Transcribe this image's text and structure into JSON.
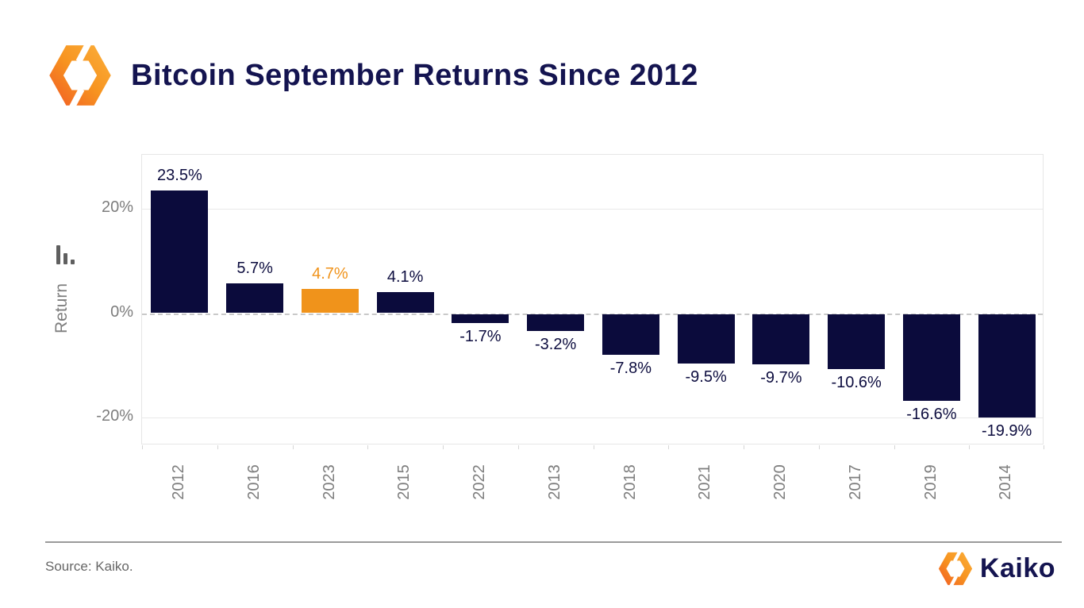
{
  "header": {
    "title": "Bitcoin September Returns Since 2012"
  },
  "chart_data": {
    "type": "bar",
    "title": "Bitcoin September Returns Since 2012",
    "xlabel": "",
    "ylabel": "Return",
    "categories": [
      "2012",
      "2016",
      "2023",
      "2015",
      "2022",
      "2013",
      "2018",
      "2021",
      "2020",
      "2017",
      "2019",
      "2014"
    ],
    "values": [
      23.5,
      5.7,
      4.7,
      4.1,
      -1.7,
      -3.2,
      -7.8,
      -9.5,
      -9.7,
      -10.6,
      -16.6,
      -19.9
    ],
    "labels": [
      "23.5%",
      "5.7%",
      "4.7%",
      "4.1%",
      "-1.7%",
      "-3.2%",
      "-7.8%",
      "-9.5%",
      "-9.7%",
      "-10.6%",
      "-16.6%",
      "-19.9%"
    ],
    "y_ticks": [
      {
        "label": "20%",
        "value": 20
      },
      {
        "label": "0%",
        "value": 0
      },
      {
        "label": "-20%",
        "value": -20
      }
    ],
    "ylim": [
      -25.3,
      30.3
    ],
    "grid": true,
    "legend": "none",
    "bar_color": "#0B0B3C",
    "highlight_color": "#F0931B",
    "highlight_index": 2,
    "label_color": "#0D0D3F",
    "axis_text_color": "#7D7D7D"
  },
  "footer": {
    "source": "Source: Kaiko.",
    "brand_name": "Kaiko"
  },
  "icons": {
    "header_logo": "kaiko-hexagon-logo",
    "y_axis_icon": "mini-bar-chart-icon",
    "footer_logo": "kaiko-hexagon-logo"
  },
  "colors": {
    "title_navy": "#141450",
    "bar_navy": "#0B0B3C",
    "accent_orange": "#F0931B",
    "gridline": "#E9E9E9",
    "divider": "#9A9A9A"
  }
}
